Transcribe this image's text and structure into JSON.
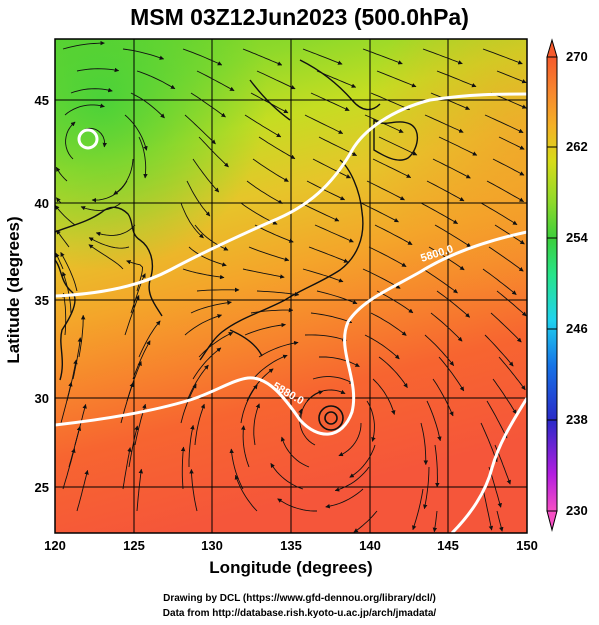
{
  "title": "MSM 03Z12Jun2023 (500.0hPa)",
  "axes": {
    "xlabel": "Longitude (degrees)",
    "ylabel": "Latitude  (degrees)",
    "xticks": [
      "120",
      "125",
      "130",
      "135",
      "140",
      "145",
      "150"
    ],
    "yticks": [
      "25",
      "30",
      "35",
      "40",
      "45"
    ],
    "xlim": [
      120,
      150
    ],
    "ylim": [
      22.5,
      47.7
    ]
  },
  "colorbar": {
    "labels": [
      "270",
      "262",
      "254",
      "246",
      "238",
      "230"
    ],
    "range": [
      230,
      270
    ],
    "colors": [
      "#f64fc4",
      "#b41ee0",
      "#2a2ac8",
      "#1673e6",
      "#20d2ee",
      "#27e48a",
      "#3ccf3c",
      "#8ed92a",
      "#d7dc19",
      "#f4b026",
      "#f7892e",
      "#f65a2c"
    ]
  },
  "contours": [
    {
      "label": "5880.0",
      "lat": 29.6
    },
    {
      "label": "5800.0",
      "lat": 36.5
    }
  ],
  "credits": {
    "line1": "Drawing by DCL (https://www.gfd-dennou.org/library/dcl/)",
    "line2": "Data from http://database.rish.kyoto-u.ac.jp/arch/jmadata/"
  },
  "chart_data": {
    "type": "heatmap",
    "title": "MSM 03Z12Jun2023 (500.0hPa)",
    "xlabel": "Longitude (degrees)",
    "ylabel": "Latitude  (degrees)",
    "xlim": [
      120,
      150
    ],
    "ylim": [
      22.5,
      47.7
    ],
    "colorbar_range": [
      230,
      270
    ],
    "features": [
      {
        "name": "cyclonic center",
        "lon": 122.3,
        "lat": 43.3
      },
      {
        "name": "typhoon center",
        "lon": 137.3,
        "lat": 28.6
      }
    ]
  }
}
